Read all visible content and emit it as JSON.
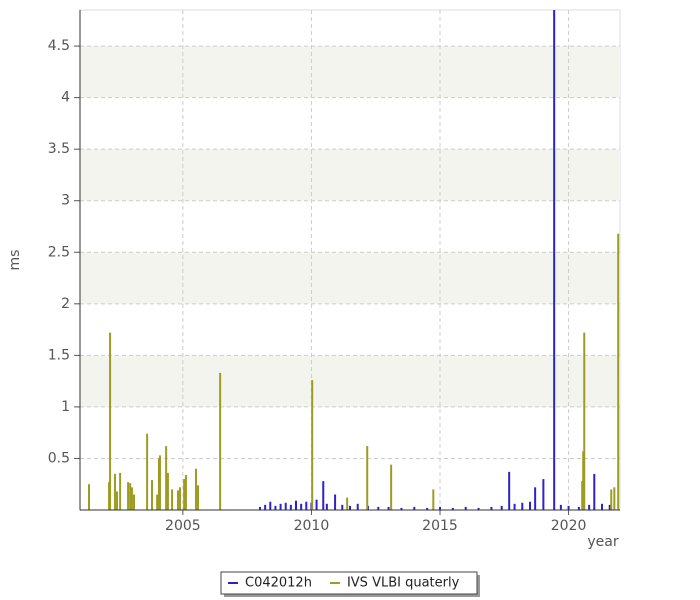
{
  "chart_data": {
    "type": "spike",
    "xlabel": "year",
    "ylabel": "ms",
    "xlim": [
      2001,
      2022
    ],
    "ylim": [
      0,
      4.85
    ],
    "xticks": [
      2005,
      2010,
      2015,
      2020
    ],
    "yticks": [
      0.5,
      1,
      1.5,
      2,
      2.5,
      3,
      3.5,
      4,
      4.5
    ],
    "grid": true,
    "legend": "bottom",
    "series": [
      {
        "name": "C042012h",
        "color": "#2a22cc",
        "x": [
          2008.0,
          2008.2,
          2008.4,
          2008.6,
          2008.8,
          2009.0,
          2009.2,
          2009.4,
          2009.6,
          2009.8,
          2010.0,
          2010.2,
          2010.46,
          2010.6,
          2010.92,
          2011.2,
          2011.5,
          2011.8,
          2012.2,
          2012.6,
          2013.0,
          2013.5,
          2014.0,
          2014.5,
          2015.0,
          2015.5,
          2016.0,
          2016.5,
          2017.0,
          2017.4,
          2017.69,
          2017.9,
          2018.2,
          2018.5,
          2018.7,
          2019.02,
          2019.44,
          2019.7,
          2020.0,
          2020.4,
          2020.8,
          2021.0,
          2021.3,
          2021.6
        ],
        "values": [
          0.03,
          0.05,
          0.08,
          0.04,
          0.06,
          0.07,
          0.05,
          0.09,
          0.06,
          0.08,
          0.07,
          0.1,
          0.28,
          0.06,
          0.15,
          0.05,
          0.04,
          0.06,
          0.04,
          0.03,
          0.03,
          0.02,
          0.03,
          0.02,
          0.03,
          0.02,
          0.03,
          0.02,
          0.03,
          0.04,
          0.37,
          0.06,
          0.07,
          0.08,
          0.22,
          0.3,
          4.85,
          0.05,
          0.04,
          0.03,
          0.05,
          0.35,
          0.06,
          0.05
        ]
      },
      {
        "name": "IVS VLBI quaterly",
        "color": "#9c9c22",
        "x": [
          2001.35,
          2002.13,
          2002.17,
          2002.36,
          2002.44,
          2002.56,
          2002.87,
          2002.95,
          2003.02,
          2003.1,
          2003.61,
          2003.8,
          2004.0,
          2004.07,
          2004.11,
          2004.35,
          2004.42,
          2004.58,
          2004.81,
          2004.89,
          2005.05,
          2005.12,
          2005.51,
          2005.59,
          2006.45,
          2010.03,
          2011.39,
          2012.17,
          2013.1,
          2014.74,
          2020.53,
          2020.57,
          2020.61,
          2021.66,
          2021.78,
          2021.93
        ],
        "values": [
          0.25,
          0.27,
          1.72,
          0.35,
          0.18,
          0.36,
          0.27,
          0.26,
          0.22,
          0.15,
          0.74,
          0.29,
          0.15,
          0.5,
          0.53,
          0.62,
          0.36,
          0.2,
          0.19,
          0.22,
          0.3,
          0.34,
          0.4,
          0.24,
          1.33,
          1.26,
          0.12,
          0.62,
          0.44,
          0.2,
          0.28,
          0.57,
          1.72,
          0.2,
          0.22,
          2.68
        ]
      }
    ]
  }
}
